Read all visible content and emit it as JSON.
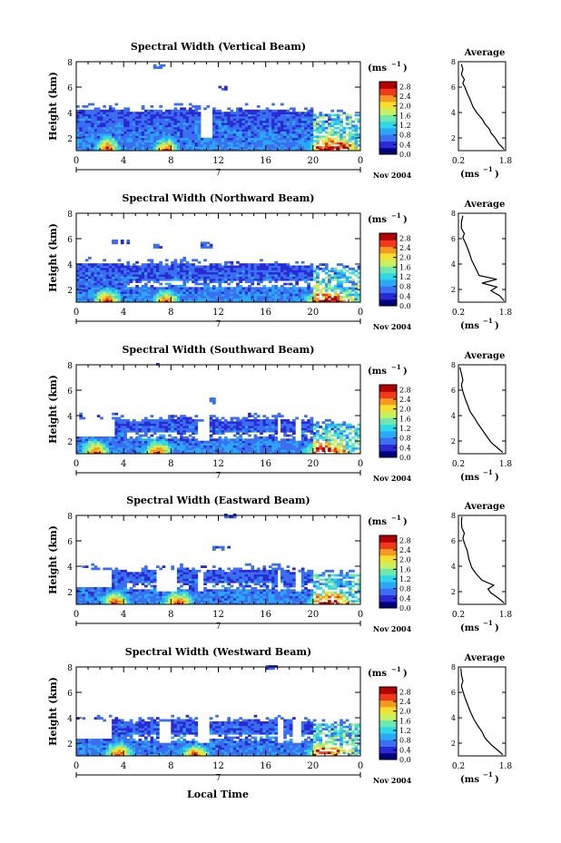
{
  "chart_data": {
    "type": "heatmap",
    "x_label": "Local Time",
    "x_ticks": [
      "0",
      "4",
      "8",
      "12",
      "16",
      "20",
      "0"
    ],
    "x_range": [
      0,
      24
    ],
    "day_label": "7",
    "date_label": "Nov 2004",
    "y_label": "Height (km)",
    "y_ticks": [
      "2",
      "4",
      "6",
      "8"
    ],
    "y_range": [
      1,
      8
    ],
    "colorbar": {
      "unit": "(ms",
      "unit_exp": "−1",
      "unit_close": ")",
      "ticks": [
        "0.0",
        "0.4",
        "0.8",
        "1.2",
        "1.6",
        "2.0",
        "2.4",
        "2.8"
      ],
      "range": [
        0.0,
        3.0
      ],
      "colors": [
        "#00007a",
        "#2a2ad4",
        "#3b6ef0",
        "#2aa8f5",
        "#2fd8e8",
        "#6fe8b0",
        "#c8f060",
        "#f5e030",
        "#f59a20",
        "#ee3a1a",
        "#b40000"
      ]
    },
    "average_panel": {
      "title": "Average",
      "x_ticks": [
        "0.2",
        "1.8"
      ],
      "x_range": [
        0.2,
        1.8
      ],
      "y_ticks": [
        "2",
        "4",
        "6",
        "8"
      ],
      "y_range": [
        1,
        8
      ],
      "x_label": "(ms",
      "x_label_exp": "−1",
      "x_label_close": ")"
    },
    "panels": [
      {
        "title": "Spectral Width (Vertical Beam)",
        "average_profile": [
          [
            1.75,
            1.1
          ],
          [
            1.55,
            1.6
          ],
          [
            1.45,
            2.0
          ],
          [
            1.3,
            2.4
          ],
          [
            1.25,
            2.7
          ],
          [
            1.1,
            3.1
          ],
          [
            1.0,
            3.5
          ],
          [
            0.85,
            3.9
          ],
          [
            0.7,
            4.4
          ],
          [
            0.6,
            5.0
          ],
          [
            0.5,
            5.5
          ],
          [
            0.42,
            6.0
          ],
          [
            0.35,
            6.3
          ],
          [
            0.4,
            6.6
          ],
          [
            0.3,
            7.0
          ],
          [
            0.35,
            7.4
          ],
          [
            0.3,
            7.8
          ]
        ]
      },
      {
        "title": "Spectral Width (Northward Beam)",
        "average_profile": [
          [
            1.75,
            1.1
          ],
          [
            1.6,
            1.5
          ],
          [
            1.3,
            1.9
          ],
          [
            1.5,
            2.2
          ],
          [
            1.0,
            2.5
          ],
          [
            1.5,
            2.8
          ],
          [
            0.9,
            3.1
          ],
          [
            0.8,
            3.6
          ],
          [
            0.65,
            4.3
          ],
          [
            0.55,
            5.0
          ],
          [
            0.45,
            5.6
          ],
          [
            0.35,
            6.1
          ],
          [
            0.4,
            6.4
          ],
          [
            0.3,
            6.8
          ],
          [
            0.3,
            7.3
          ],
          [
            0.35,
            7.8
          ]
        ]
      },
      {
        "title": "Spectral Width (Southward Beam)",
        "average_profile": [
          [
            1.7,
            1.1
          ],
          [
            1.5,
            1.5
          ],
          [
            1.3,
            1.9
          ],
          [
            1.15,
            2.4
          ],
          [
            1.0,
            2.9
          ],
          [
            0.85,
            3.4
          ],
          [
            0.75,
            3.8
          ],
          [
            0.6,
            4.3
          ],
          [
            0.5,
            4.9
          ],
          [
            0.42,
            5.4
          ],
          [
            0.35,
            5.9
          ],
          [
            0.3,
            6.4
          ],
          [
            0.35,
            6.8
          ],
          [
            0.3,
            7.3
          ],
          [
            0.25,
            7.8
          ]
        ]
      },
      {
        "title": "Spectral Width (Eastward Beam)",
        "average_profile": [
          [
            1.75,
            1.1
          ],
          [
            1.55,
            1.5
          ],
          [
            1.3,
            1.9
          ],
          [
            1.2,
            2.2
          ],
          [
            1.4,
            2.5
          ],
          [
            1.0,
            2.9
          ],
          [
            0.8,
            3.4
          ],
          [
            0.65,
            3.9
          ],
          [
            0.55,
            4.6
          ],
          [
            0.5,
            5.2
          ],
          [
            0.42,
            5.7
          ],
          [
            0.35,
            6.2
          ],
          [
            0.4,
            6.6
          ],
          [
            0.32,
            7.0
          ],
          [
            0.3,
            7.5
          ],
          [
            0.32,
            7.9
          ]
        ]
      },
      {
        "title": "Spectral Width (Westward Beam)",
        "average_profile": [
          [
            1.7,
            1.1
          ],
          [
            1.5,
            1.5
          ],
          [
            1.3,
            1.9
          ],
          [
            1.1,
            2.4
          ],
          [
            1.0,
            2.9
          ],
          [
            0.85,
            3.4
          ],
          [
            0.72,
            3.9
          ],
          [
            0.6,
            4.5
          ],
          [
            0.5,
            5.1
          ],
          [
            0.42,
            5.6
          ],
          [
            0.35,
            6.1
          ],
          [
            0.3,
            6.5
          ],
          [
            0.35,
            6.9
          ],
          [
            0.3,
            7.4
          ],
          [
            0.28,
            7.9
          ]
        ]
      }
    ]
  }
}
